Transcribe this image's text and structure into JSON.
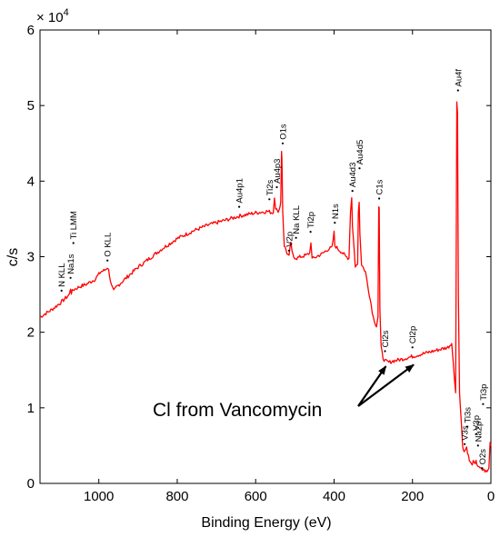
{
  "chart_data": {
    "type": "line",
    "xlabel": "Binding Energy (eV)",
    "ylabel": "c/s",
    "y_multiplier": "× 10",
    "y_multiplier_exp": "4",
    "xlim": [
      1150,
      0
    ],
    "ylim": [
      0,
      6
    ],
    "x_reversed": true,
    "grid": false,
    "line_color": "#ff0000",
    "x_ticks": [
      {
        "value": 1000,
        "label": "1000"
      },
      {
        "value": 800,
        "label": "800"
      },
      {
        "value": 600,
        "label": "600"
      },
      {
        "value": 400,
        "label": "400"
      },
      {
        "value": 200,
        "label": "200"
      },
      {
        "value": 0,
        "label": "0"
      }
    ],
    "y_ticks": [
      {
        "value": 0,
        "label": "0"
      },
      {
        "value": 1,
        "label": "1"
      },
      {
        "value": 2,
        "label": "2"
      },
      {
        "value": 3,
        "label": "3"
      },
      {
        "value": 4,
        "label": "4"
      },
      {
        "value": 5,
        "label": "5"
      },
      {
        "value": 6,
        "label": "6"
      }
    ],
    "series": [
      {
        "points": [
          [
            1150,
            2.2
          ],
          [
            1120,
            2.3
          ],
          [
            1100,
            2.38
          ],
          [
            1085,
            2.45
          ],
          [
            1075,
            2.5
          ],
          [
            1072,
            2.58
          ],
          [
            1070,
            2.52
          ],
          [
            1066,
            2.56
          ],
          [
            1050,
            2.6
          ],
          [
            1030,
            2.64
          ],
          [
            1010,
            2.7
          ],
          [
            995,
            2.8
          ],
          [
            985,
            2.82
          ],
          [
            978,
            2.86
          ],
          [
            975,
            2.82
          ],
          [
            968,
            2.62
          ],
          [
            962,
            2.54
          ],
          [
            955,
            2.6
          ],
          [
            930,
            2.72
          ],
          [
            900,
            2.86
          ],
          [
            870,
            2.98
          ],
          [
            840,
            3.1
          ],
          [
            800,
            3.24
          ],
          [
            760,
            3.34
          ],
          [
            720,
            3.42
          ],
          [
            680,
            3.48
          ],
          [
            640,
            3.54
          ],
          [
            600,
            3.58
          ],
          [
            570,
            3.6
          ],
          [
            555,
            3.58
          ],
          [
            552,
            3.8
          ],
          [
            549,
            3.65
          ],
          [
            545,
            3.6
          ],
          [
            540,
            3.62
          ],
          [
            536,
            3.72
          ],
          [
            534,
            4.4
          ],
          [
            533,
            4.3
          ],
          [
            531,
            3.6
          ],
          [
            527,
            3.15
          ],
          [
            520,
            3.05
          ],
          [
            515,
            3.0
          ],
          [
            510,
            3.2
          ],
          [
            507,
            3.05
          ],
          [
            503,
            3.0
          ],
          [
            495,
            2.98
          ],
          [
            485,
            3.0
          ],
          [
            470,
            3.02
          ],
          [
            462,
            3.05
          ],
          [
            459,
            3.2
          ],
          [
            456,
            2.97
          ],
          [
            445,
            3.0
          ],
          [
            430,
            3.04
          ],
          [
            415,
            3.1
          ],
          [
            405,
            3.12
          ],
          [
            400,
            3.32
          ],
          [
            398,
            3.15
          ],
          [
            390,
            3.1
          ],
          [
            380,
            3.06
          ],
          [
            370,
            3.0
          ],
          [
            362,
            2.98
          ],
          [
            358,
            3.6
          ],
          [
            355,
            3.78
          ],
          [
            353,
            3.4
          ],
          [
            346,
            2.88
          ],
          [
            340,
            2.9
          ],
          [
            338,
            3.6
          ],
          [
            336,
            3.72
          ],
          [
            334,
            3.3
          ],
          [
            330,
            2.9
          ],
          [
            320,
            2.8
          ],
          [
            310,
            2.5
          ],
          [
            300,
            2.2
          ],
          [
            292,
            2.08
          ],
          [
            288,
            2.2
          ],
          [
            286,
            3.65
          ],
          [
            285,
            3.65
          ],
          [
            283,
            2.3
          ],
          [
            280,
            1.8
          ],
          [
            275,
            1.66
          ],
          [
            270,
            1.62
          ],
          [
            260,
            1.6
          ],
          [
            250,
            1.62
          ],
          [
            230,
            1.64
          ],
          [
            200,
            1.68
          ],
          [
            170,
            1.72
          ],
          [
            140,
            1.76
          ],
          [
            110,
            1.8
          ],
          [
            100,
            1.85
          ],
          [
            93,
            1.4
          ],
          [
            90,
            1.2
          ],
          [
            88,
            3.5
          ],
          [
            87,
            5.05
          ],
          [
            85,
            4.9
          ],
          [
            83,
            2.5
          ],
          [
            80,
            1.2
          ],
          [
            75,
            0.75
          ],
          [
            72,
            0.5
          ],
          [
            68,
            0.42
          ],
          [
            62,
            0.48
          ],
          [
            55,
            0.3
          ],
          [
            50,
            0.25
          ],
          [
            45,
            0.28
          ],
          [
            40,
            0.24
          ],
          [
            38,
            0.32
          ],
          [
            36,
            0.26
          ],
          [
            30,
            0.2
          ],
          [
            20,
            0.18
          ],
          [
            10,
            0.15
          ],
          [
            5,
            0.2
          ],
          [
            2,
            0.55
          ],
          [
            0,
            0.5
          ]
        ]
      }
    ],
    "peak_labels": [
      {
        "text": "N KLL",
        "x": 1095,
        "y": 2.55
      },
      {
        "text": "Na1s",
        "x": 1072,
        "y": 2.72
      },
      {
        "text": "Ti LMM",
        "x": 1065,
        "y": 3.18
      },
      {
        "text": "O KLL",
        "x": 978,
        "y": 2.95
      },
      {
        "text": "Au4p1",
        "x": 642,
        "y": 3.66
      },
      {
        "text": "Ti2s",
        "x": 565,
        "y": 3.76
      },
      {
        "text": "Au4p3",
        "x": 546,
        "y": 3.92
      },
      {
        "text": "O1s",
        "x": 531,
        "y": 4.5
      },
      {
        "text": "V2p",
        "x": 515,
        "y": 3.08
      },
      {
        "text": "Na KLL",
        "x": 497,
        "y": 3.25
      },
      {
        "text": "Ti2p",
        "x": 460,
        "y": 3.33
      },
      {
        "text": "N1s",
        "x": 398,
        "y": 3.45
      },
      {
        "text": "Au4d3",
        "x": 353,
        "y": 3.87
      },
      {
        "text": "Au4d5",
        "x": 335,
        "y": 4.17
      },
      {
        "text": "C1s",
        "x": 285,
        "y": 3.77
      },
      {
        "text": "Cl2s",
        "x": 270,
        "y": 1.75
      },
      {
        "text": "Cl2p",
        "x": 200,
        "y": 1.8
      },
      {
        "text": "Au4f",
        "x": 84,
        "y": 5.2
      },
      {
        "text": "Ti3s",
        "x": 60,
        "y": 0.75
      },
      {
        "text": "V3s",
        "x": 67,
        "y": 0.52
      },
      {
        "text": "V3p",
        "x": 38,
        "y": 0.65
      },
      {
        "text": "Na2p",
        "x": 33,
        "y": 0.5
      },
      {
        "text": "Ti3p",
        "x": 20,
        "y": 1.05
      },
      {
        "text": "O2s",
        "x": 22,
        "y": 0.2
      }
    ],
    "annotations": [
      {
        "text": "Cl from Vancomycin",
        "arrows": [
          {
            "to_x": 268,
            "to_y": 1.55
          },
          {
            "to_x": 197,
            "to_y": 1.57
          }
        ]
      }
    ]
  }
}
